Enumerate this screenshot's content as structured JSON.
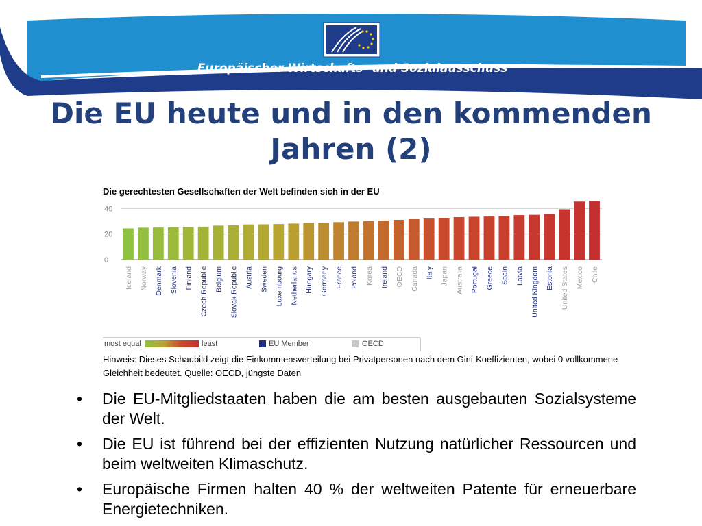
{
  "header": {
    "organization_name": "Europäischer Wirtschafts- und Sozialausschuss",
    "banner_color": "#1f8fd0",
    "band_color": "#1f3c8a"
  },
  "slide": {
    "title_line1": "Die EU heute und in den kommenden",
    "title_line2": "Jahren (2)"
  },
  "chart_data": {
    "type": "bar",
    "title": "Die gerechtesten Gesellschaften der Welt befinden sich in der EU",
    "xlabel": "",
    "ylabel": "",
    "ylim": [
      0,
      45
    ],
    "yticks": [
      0,
      20,
      40
    ],
    "grid": false,
    "categories": [
      "Iceland",
      "Norway",
      "Denmark",
      "Slovenia",
      "Finland",
      "Czech Republic",
      "Belgium",
      "Slovak Republic",
      "Austria",
      "Sweden",
      "Luxembourg",
      "Netherlands",
      "Hungary",
      "Germany",
      "France",
      "Poland",
      "Korea",
      "Ireland",
      "OECD",
      "Canada",
      "Italy",
      "Japan",
      "Australia",
      "Portugal",
      "Greece",
      "Spain",
      "Latvia",
      "United Kingdom",
      "Estonia",
      "United States",
      "Mexico",
      "Chile"
    ],
    "values": [
      24.4,
      25.0,
      25.1,
      25.2,
      25.5,
      25.8,
      26.6,
      26.8,
      27.5,
      27.6,
      27.8,
      28.2,
      28.7,
      28.9,
      29.3,
      29.8,
      30.2,
      30.5,
      31.1,
      31.6,
      32.1,
      32.5,
      33.2,
      33.5,
      33.7,
      34.1,
      34.8,
      35.0,
      35.7,
      39.4,
      45.4,
      46.0
    ],
    "group": [
      "eu-excluded",
      "other",
      "eu",
      "eu",
      "eu",
      "eu",
      "eu",
      "eu",
      "eu",
      "eu",
      "eu",
      "eu",
      "eu",
      "eu",
      "eu",
      "eu",
      "other",
      "eu",
      "oecd",
      "other",
      "eu",
      "other",
      "other",
      "eu",
      "eu",
      "eu",
      "eu",
      "eu",
      "eu",
      "other",
      "other",
      "other"
    ],
    "legend": {
      "placement": "bottom",
      "scale_start": "most equal",
      "scale_end": "least",
      "eu_member": "EU Member",
      "oecd": "OECD",
      "eu_color": "#23307f",
      "oecd_color": "#c8c8c8"
    },
    "bar_gradient": [
      "#8fc23f",
      "#b8a430",
      "#c94a2c",
      "#c62f2f"
    ]
  },
  "note": {
    "text": "Hinweis: Dieses Schaubild zeigt die Einkommensverteilung bei Privatpersonen nach dem Gini-Koeffizienten, wobei 0 vollkommene Gleichheit bedeutet.  Quelle: OECD, jüngste Daten"
  },
  "bullets": [
    "Die EU-Mitgliedstaaten haben die am besten ausgebauten Sozialsysteme der Welt.",
    "Die EU ist führend bei der effizienten Nutzung natürlicher Ressourcen und beim weltweiten Klimaschutz.",
    "Europäische Firmen halten 40 % der weltweiten Patente für erneuerbare Energietechniken."
  ],
  "bullet_symbol": "•"
}
